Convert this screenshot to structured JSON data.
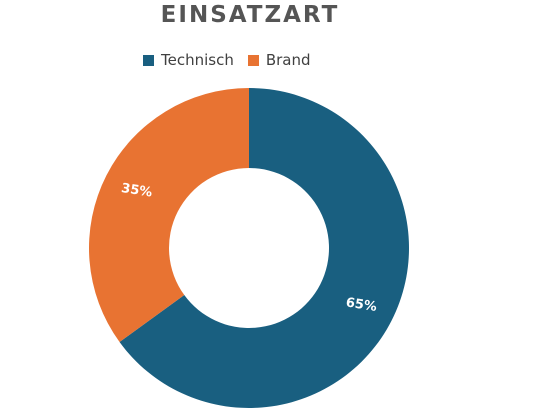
{
  "chart_data": {
    "type": "pie",
    "title": "EINSATZART",
    "donut": true,
    "legend_position": "top",
    "categories": [
      "Technisch",
      "Brand"
    ],
    "values": [
      65,
      35
    ],
    "labels": [
      "65%",
      "35%"
    ],
    "colors": [
      "#195f80",
      "#e87332"
    ]
  }
}
